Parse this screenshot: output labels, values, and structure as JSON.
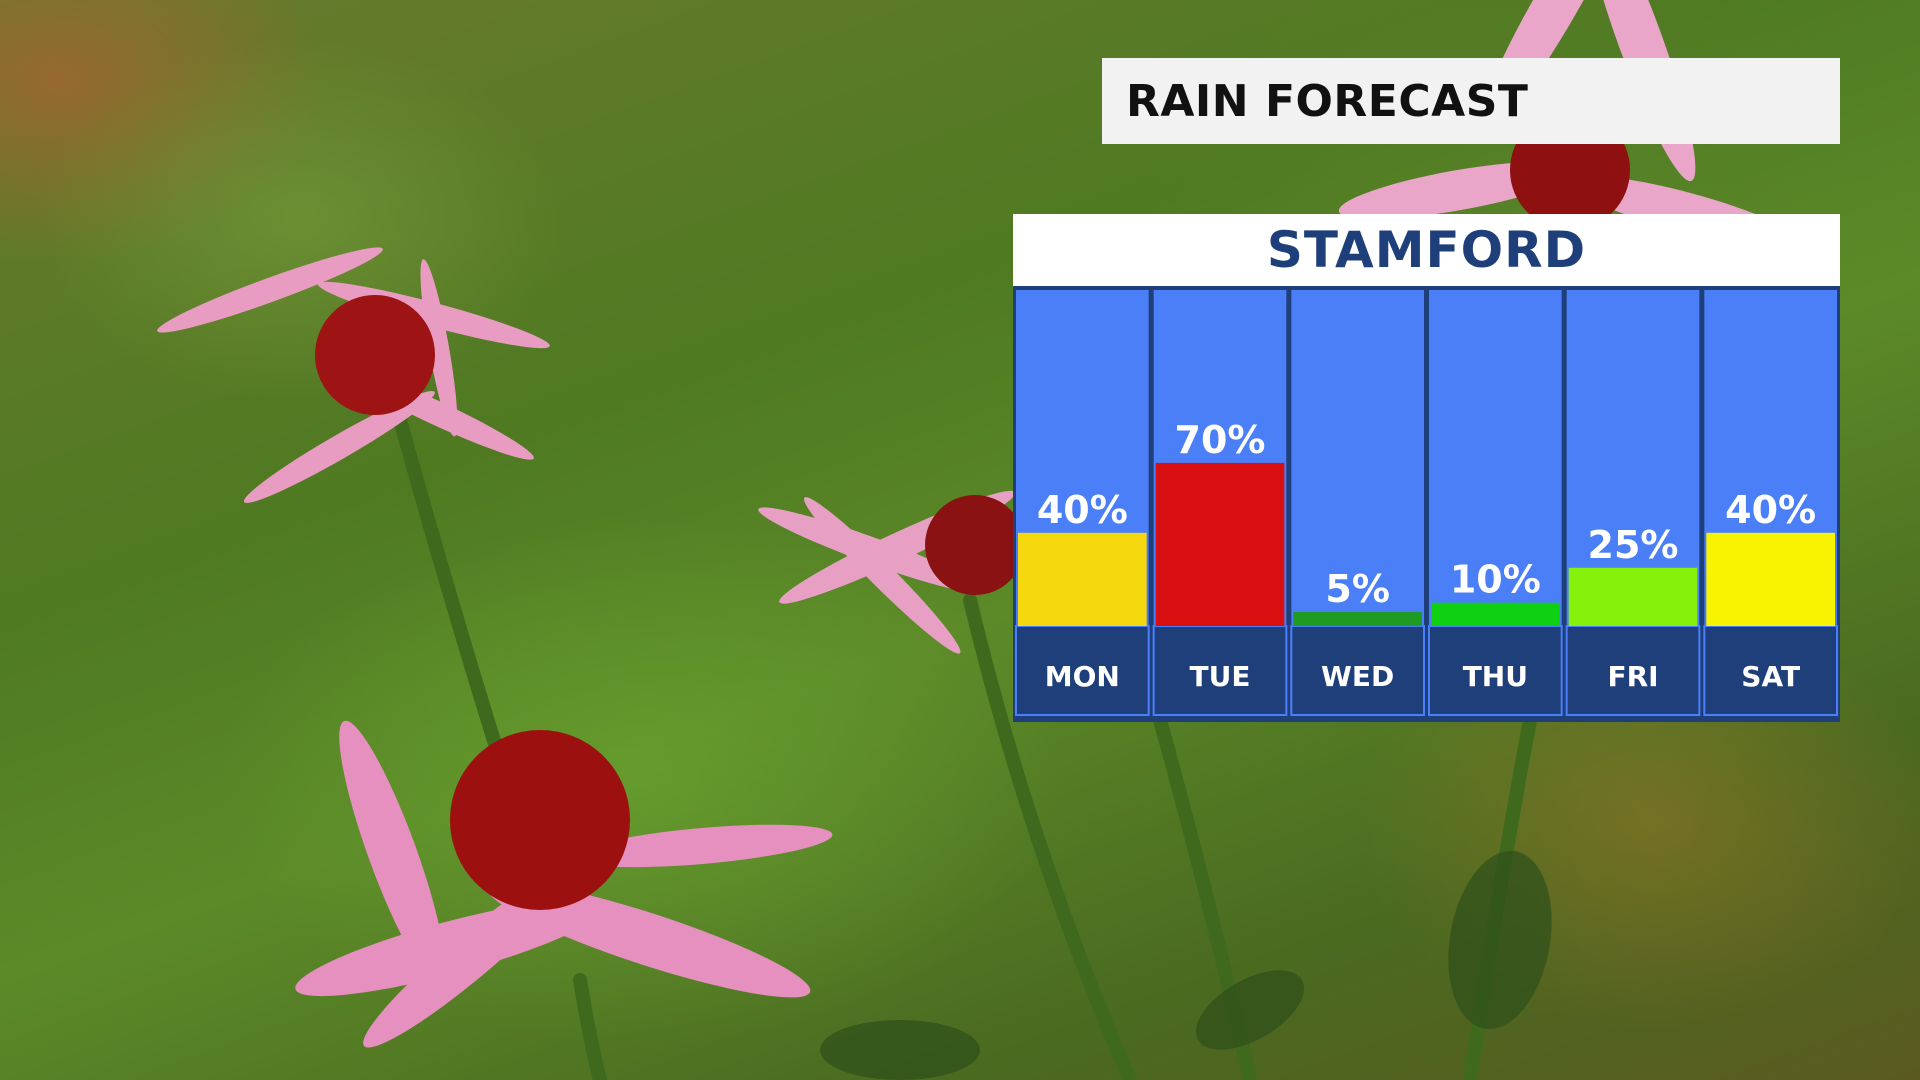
{
  "title": "RAIN FORECAST",
  "chart_data": {
    "type": "bar",
    "title": "STAMFORD",
    "categories": [
      "MON",
      "TUE",
      "WED",
      "THU",
      "FRI",
      "SAT"
    ],
    "values": [
      40,
      70,
      5,
      10,
      25,
      40
    ],
    "value_labels": [
      "40%",
      "70%",
      "5%",
      "10%",
      "25%",
      "40%"
    ],
    "bar_colors": [
      "#f6d80f",
      "#d80e10",
      "#1f9a22",
      "#10d014",
      "#86f10a",
      "#f8f401"
    ],
    "panel_color": "#4a7ff8",
    "frame_color": "#1f3f7a",
    "ylim": [
      0,
      100
    ]
  }
}
